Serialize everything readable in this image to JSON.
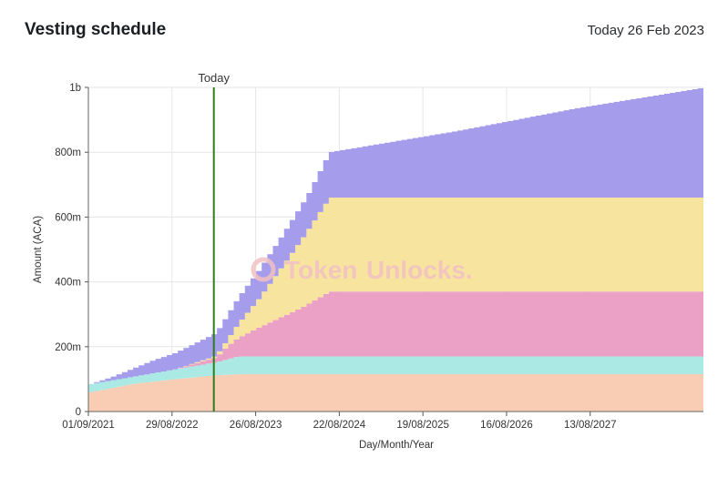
{
  "header": {
    "title": "Vesting schedule",
    "today_text": "Today 26 Feb 2023"
  },
  "watermark": {
    "text_a": "Token",
    "text_b": "Unlocks.",
    "icon": "tokenunlocks-logo-icon"
  },
  "chart_data": {
    "type": "area",
    "stacked": true,
    "stepped": true,
    "xlabel": "Day/Month/Year",
    "ylabel": "Amount (ACA)",
    "x_range": [
      "01/09/2021",
      "15/12/2028"
    ],
    "ylim": [
      0,
      1000000000
    ],
    "y_ticks": [
      {
        "value": 0,
        "label": "0"
      },
      {
        "value": 200000000,
        "label": "200m"
      },
      {
        "value": 400000000,
        "label": "400m"
      },
      {
        "value": 600000000,
        "label": "600m"
      },
      {
        "value": 800000000,
        "label": "800m"
      },
      {
        "value": 1000000000,
        "label": "1b"
      }
    ],
    "x_ticks": [
      "01/09/2021",
      "29/08/2022",
      "26/08/2023",
      "22/08/2024",
      "19/08/2025",
      "16/08/2026",
      "13/08/2027"
    ],
    "grid": true,
    "today": {
      "label": "Today",
      "date": "26/02/2023",
      "color": "#2e7d1e"
    },
    "series": [
      {
        "color": "#f8cdb4",
        "points": [
          [
            "01/09/2021",
            60000000
          ],
          [
            "01/03/2022",
            85000000
          ],
          [
            "01/09/2022",
            100000000
          ],
          [
            "26/02/2023",
            112000000
          ],
          [
            "01/06/2023",
            115000000
          ],
          [
            "15/12/2028",
            115000000
          ]
        ]
      },
      {
        "color": "#abeae4",
        "points": [
          [
            "01/09/2021",
            25000000
          ],
          [
            "01/03/2022",
            22000000
          ],
          [
            "01/09/2022",
            30000000
          ],
          [
            "26/02/2023",
            40000000
          ],
          [
            "01/06/2023",
            55000000
          ],
          [
            "15/12/2028",
            55000000
          ]
        ]
      },
      {
        "color": "#eba0c6",
        "points": [
          [
            "01/09/2022",
            0
          ],
          [
            "26/02/2023",
            15000000
          ],
          [
            "15/04/2023",
            40000000
          ],
          [
            "01/09/2023",
            90000000
          ],
          [
            "01/03/2024",
            150000000
          ],
          [
            "01/07/2024",
            200000000
          ],
          [
            "15/12/2028",
            200000000
          ]
        ]
      },
      {
        "color": "#f7e49f",
        "points": [
          [
            "01/09/2022",
            0
          ],
          [
            "26/02/2023",
            5000000
          ],
          [
            "15/04/2023",
            20000000
          ],
          [
            "01/09/2023",
            90000000
          ],
          [
            "01/03/2024",
            210000000
          ],
          [
            "01/07/2024",
            290000000
          ],
          [
            "15/12/2028",
            290000000
          ]
        ]
      },
      {
        "color": "#a59ceb",
        "points": [
          [
            "01/09/2021",
            0
          ],
          [
            "01/12/2021",
            10000000
          ],
          [
            "01/06/2022",
            40000000
          ],
          [
            "26/02/2023",
            70000000
          ],
          [
            "01/06/2023",
            80000000
          ],
          [
            "01/12/2023",
            95000000
          ],
          [
            "01/04/2024",
            110000000
          ],
          [
            "01/07/2024",
            140000000
          ],
          [
            "01/01/2026",
            205000000
          ],
          [
            "01/06/2027",
            275000000
          ],
          [
            "15/12/2028",
            340000000
          ]
        ]
      }
    ]
  }
}
